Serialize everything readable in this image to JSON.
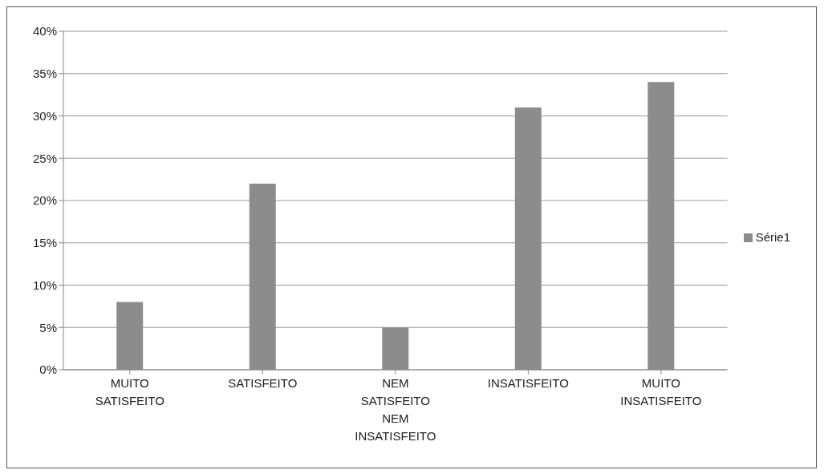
{
  "chart_data": {
    "type": "bar",
    "categories": [
      "MUITO SATISFEITO",
      "SATISFEITO",
      "NEM SATISFEITO NEM INSATISFEITO",
      "INSATISFEITO",
      "MUITO INSATISFEITO"
    ],
    "series": [
      {
        "name": "Série1",
        "color": "#8c8c8c",
        "values": [
          8,
          22,
          5,
          31,
          34
        ]
      }
    ],
    "ylim": [
      0,
      40
    ],
    "yticks": [
      {
        "value": 0,
        "label": "0%"
      },
      {
        "value": 5,
        "label": "5%"
      },
      {
        "value": 10,
        "label": "10%"
      },
      {
        "value": 15,
        "label": "15%"
      },
      {
        "value": 20,
        "label": "20%"
      },
      {
        "value": 25,
        "label": "25%"
      },
      {
        "value": 30,
        "label": "30%"
      },
      {
        "value": 35,
        "label": "35%"
      },
      {
        "value": 40,
        "label": "40%"
      }
    ],
    "grid": "y",
    "legend": "right"
  }
}
